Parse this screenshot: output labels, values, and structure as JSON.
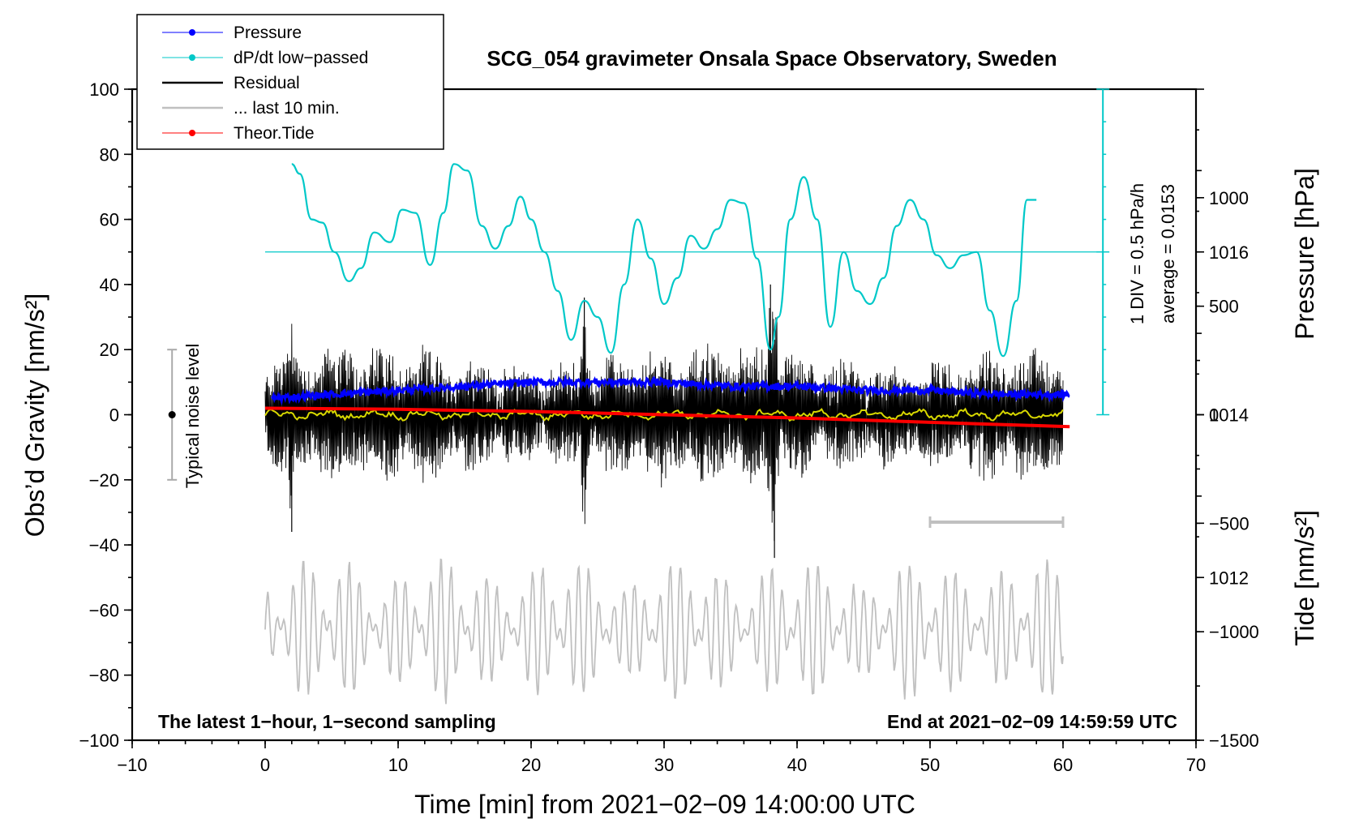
{
  "chart_data": {
    "type": "line",
    "title": "SCG_054 gravimeter Onsala Space Observatory, Sweden",
    "xlabel": "Time [min] from 2021−02−09 14:00:00 UTC",
    "ylabel_left": "Obs’d Gravity [nm/s²]",
    "ylabel_right_top": "Pressure [hPa]",
    "ylabel_right_bottom": "Tide [nm/s²]",
    "xlim": [
      -10,
      70
    ],
    "ylim": [
      -100,
      100
    ],
    "pressure_lim": [
      1010,
      1018
    ],
    "tide_lim": [
      -1500,
      1500
    ],
    "x_ticks": [
      "−10",
      "0",
      "10",
      "20",
      "30",
      "40",
      "50",
      "60",
      "70"
    ],
    "y_ticks": [
      "−100",
      "−80",
      "−60",
      "−40",
      "−20",
      "0",
      "20",
      "40",
      "60",
      "80",
      "100"
    ],
    "pressure_ticks": [
      "1012",
      "1014",
      "1016"
    ],
    "tide_ticks": [
      "−1500",
      "−1000",
      "−500",
      "0",
      "500",
      "1000"
    ],
    "legend": [
      "Pressure",
      "dP/dt low−passed",
      "Residual",
      "... last 10 min.",
      "Theor.Tide"
    ],
    "legend_colors": [
      "#0000ff",
      "#00c8c8",
      "#000000",
      "#c0c0c0",
      "#ff0000"
    ],
    "annotations": {
      "noise": "Typical noise level",
      "div": "1 DIV = 0.5 hPa/h",
      "avg": "average = 0.0153",
      "bottom_left": "The latest 1−hour, 1−second sampling",
      "bottom_right": "End at 2021−02−09 14:59:59 UTC"
    },
    "noise_level": [
      -20,
      20
    ],
    "last10_range_min": [
      50,
      60
    ],
    "series": [
      {
        "name": "Pressure",
        "unit": "hPa",
        "x": [
          0.5,
          5,
          10,
          15,
          20,
          25,
          30,
          35,
          40,
          45,
          50,
          55,
          60.5
        ],
        "values": [
          1014.2,
          1014.25,
          1014.3,
          1014.35,
          1014.4,
          1014.4,
          1014.4,
          1014.35,
          1014.35,
          1014.3,
          1014.3,
          1014.25,
          1014.25
        ]
      },
      {
        "name": "dP/dt low−passed",
        "unit": "gravity axis",
        "x": [
          2.0,
          2.6,
          3.5,
          4.3,
          5.2,
          6.3,
          7.2,
          8.2,
          9.4,
          10.3,
          11.3,
          12.4,
          13.4,
          14.2,
          15.2,
          16.3,
          17.3,
          18.3,
          19.2,
          20.0,
          21.0,
          22.0,
          23.0,
          24.0,
          25.0,
          26.0,
          27.0,
          28.0,
          29.0,
          30.0,
          31.0,
          32.0,
          33.0,
          34.0,
          35.0,
          36.0,
          37.0,
          38.0,
          38.6,
          39.5,
          40.5,
          41.5,
          42.5,
          43.5,
          44.5,
          45.5,
          46.5,
          47.5,
          48.5,
          49.5,
          50.5,
          51.5,
          52.5,
          53.5,
          54.5,
          55.5,
          56.5,
          57.3,
          58.0
        ],
        "values": [
          77,
          74,
          60,
          59,
          50,
          41,
          45,
          56,
          53,
          63,
          62,
          46,
          62,
          77,
          75,
          58,
          51,
          58,
          67,
          60,
          50,
          38,
          23,
          35,
          30,
          19,
          40,
          60,
          48,
          34,
          42,
          55,
          51,
          57,
          66,
          65,
          48,
          20,
          30,
          60,
          73,
          60,
          27,
          50,
          38,
          34,
          42,
          58,
          66,
          60,
          49,
          45,
          49,
          50,
          32,
          18,
          35,
          66,
          66
        ]
      },
      {
        "name": "Residual",
        "unit": "nm/s²",
        "x_range": [
          0,
          60
        ],
        "peaks": [
          {
            "x": 2,
            "value": -36
          },
          {
            "x": 24,
            "value": 36
          },
          {
            "x": 38,
            "value": 40
          },
          {
            "x": 38.3,
            "value": -44
          }
        ],
        "typical_amplitude": 15
      },
      {
        "name": "... last 10 min.",
        "unit": "nm/s² (offset)",
        "x_range": [
          0,
          60
        ],
        "center": -66,
        "typical_amplitude": 18
      },
      {
        "name": "Theor.Tide",
        "unit": "nm/s² tide axis",
        "x": [
          0,
          10,
          20,
          30,
          40,
          50,
          60.5
        ],
        "values": [
          30,
          25,
          15,
          0,
          -15,
          -35,
          -55
        ]
      }
    ]
  }
}
